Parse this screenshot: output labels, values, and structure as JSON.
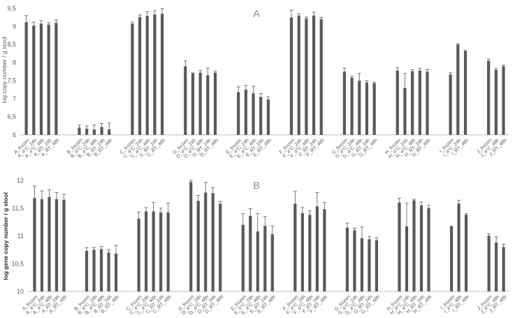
{
  "colors": {
    "bar": "#595959",
    "axis": "#bfbfbf",
    "text": "#595959",
    "ylabel_bottom": "#262626",
    "panel_label": "#808080"
  },
  "chart_data": [
    {
      "type": "bar",
      "panel_label": "A",
      "ylabel": "log copy number / g stool",
      "ylim": [
        6,
        9.5
      ],
      "yticks": [
        "6",
        "6,5",
        "7",
        "7,5",
        "8",
        "8,5",
        "9",
        "9,5"
      ],
      "grid": false,
      "categories": [
        "A_frozen",
        "A_4°C_24h",
        "A_4°C_48h",
        "A_RT_24h",
        "A_RT_48h",
        "B_frozen",
        "B_4°C_24h",
        "B_4°C_48h",
        "B_RT_24h",
        "B_RT_48h",
        "C_frozen",
        "C_4°C_24h",
        "C_4°C_48h",
        "C_RT_24h",
        "C_RT_48h",
        "D_frozen",
        "D_4°C_24h",
        "D_4°C_48h",
        "D_RT_24h",
        "D_RT_48h",
        "E_frozen",
        "E_4°C_24h",
        "E_4°C_48h",
        "E_RT_24h",
        "E_RT_48h",
        "F_frozen",
        "F_4°C_24h",
        "F_4°C_48h",
        "F_RT_24h",
        "F_RT_48h",
        "G_frozen",
        "G_4°C_24h",
        "G_4°C_48h",
        "G_RT_24h",
        "G_RT_48h",
        "H_frozen",
        "H_4°C_24h",
        "H_4°C_48h",
        "H_RT_24h",
        "H_RT_48h",
        "I_frozen",
        "I_4°C_24h",
        "I_RT_48h",
        "J_frozen",
        "J_4°C_48h",
        "J_RT_48h"
      ],
      "values": [
        9.12,
        9.02,
        9.08,
        9.05,
        9.1,
        6.2,
        6.17,
        6.15,
        6.22,
        6.15,
        9.08,
        9.26,
        9.29,
        9.33,
        9.35,
        7.9,
        7.7,
        7.72,
        7.65,
        7.72,
        7.18,
        7.25,
        7.15,
        7.05,
        6.98,
        9.25,
        9.3,
        9.22,
        9.3,
        9.2,
        7.75,
        7.58,
        7.5,
        7.45,
        7.43,
        7.78,
        7.3,
        7.76,
        7.78,
        7.75,
        7.67,
        8.5,
        8.32,
        8.05,
        7.8,
        7.9
      ],
      "errors": [
        0.18,
        0.1,
        0.08,
        0.05,
        0.08,
        0.07,
        0.08,
        0.12,
        0.1,
        0.18,
        0.04,
        0.06,
        0.12,
        0.1,
        0.14,
        0.15,
        0.02,
        0.06,
        0.2,
        0.04,
        0.15,
        0.12,
        0.2,
        0.1,
        0.07,
        0.2,
        0.05,
        0.04,
        0.1,
        0.05,
        0.1,
        0.04,
        0.2,
        0.05,
        0.03,
        0.08,
        0.4,
        0.05,
        0.06,
        0.06,
        0.05,
        0.02,
        0.02,
        0.05,
        0.04,
        0.03
      ]
    },
    {
      "type": "bar",
      "panel_label": "B",
      "ylabel": "log gene copy number / g stool",
      "ylim": [
        10,
        12
      ],
      "yticks": [
        "10",
        "10,5",
        "11",
        "11,5",
        "12"
      ],
      "grid": false,
      "categories": [
        "A_frozen",
        "A_4°C_24h",
        "A_4°C_48h",
        "A_RT_24h",
        "A_RT_48h",
        "B_frozen",
        "B_4°C_24h",
        "B_4°C_48h",
        "B_RT_24h",
        "B_RT_48h",
        "C_frozen",
        "C_4°C_24h",
        "C_4°C_48h",
        "C_RT_24h",
        "C_RT_48h",
        "D_frozen",
        "D_4°C_24h",
        "D_4°C_48h",
        "D_RT_24h",
        "D_RT_48h",
        "E_frozen",
        "E_4°C_24h",
        "E_4°C_48h",
        "E_RT_24h",
        "E_RT_48h",
        "F_frozen",
        "F_4°C_24h",
        "F_4°C_48h",
        "F_RT_24h",
        "F_RT_48h",
        "G_frozen",
        "G_4°C_24h",
        "G_4°C_48h",
        "G_RT_24h",
        "G_RT_48h",
        "H_frozen",
        "H_4°C_24h",
        "H_4°C_48h",
        "H_RT_24h",
        "H_RT_48h",
        "I_frozen",
        "I_4°C_48h",
        "I_RT_48h",
        "J_frozen",
        "J_4°C_48h",
        "J_RT_48h"
      ],
      "values": [
        11.68,
        11.66,
        11.7,
        11.66,
        11.65,
        10.73,
        10.75,
        10.76,
        10.7,
        10.68,
        11.31,
        11.44,
        11.44,
        11.42,
        11.42,
        11.97,
        11.63,
        11.78,
        11.77,
        11.58,
        11.2,
        11.36,
        11.08,
        11.18,
        11.03,
        11.58,
        11.41,
        11.38,
        11.53,
        11.48,
        11.15,
        11.1,
        10.96,
        10.94,
        10.92,
        11.6,
        11.17,
        11.64,
        11.55,
        11.5,
        11.18,
        11.58,
        11.38,
        11.0,
        10.88,
        10.8
      ],
      "errors": [
        0.22,
        0.15,
        0.13,
        0.12,
        0.1,
        0.06,
        0.04,
        0.05,
        0.05,
        0.15,
        0.12,
        0.07,
        0.16,
        0.08,
        0.17,
        0.03,
        0.1,
        0.18,
        0.1,
        0.04,
        0.2,
        0.13,
        0.32,
        0.17,
        0.15,
        0.22,
        0.1,
        0.07,
        0.25,
        0.12,
        0.08,
        0.04,
        0.2,
        0.05,
        0.05,
        0.08,
        0.42,
        0.02,
        0.06,
        0.05,
        0.0,
        0.06,
        0.02,
        0.04,
        0.1,
        0.05
      ]
    }
  ]
}
